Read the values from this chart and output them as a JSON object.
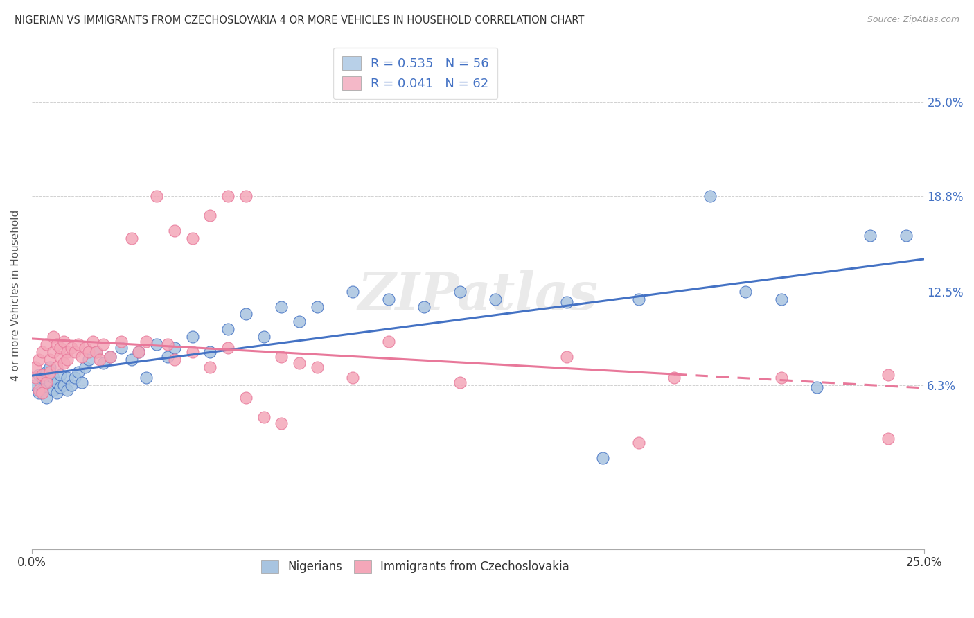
{
  "title": "NIGERIAN VS IMMIGRANTS FROM CZECHOSLOVAKIA 4 OR MORE VEHICLES IN HOUSEHOLD CORRELATION CHART",
  "source": "Source: ZipAtlas.com",
  "ylabel": "4 or more Vehicles in Household",
  "ytick_labels": [
    "25.0%",
    "18.8%",
    "12.5%",
    "6.3%"
  ],
  "ytick_values": [
    0.25,
    0.188,
    0.125,
    0.063
  ],
  "xmin": 0.0,
  "xmax": 0.25,
  "ymin": -0.045,
  "ymax": 0.29,
  "blue_R": 0.535,
  "blue_N": 56,
  "pink_R": 0.041,
  "pink_N": 62,
  "blue_color": "#a8c4e0",
  "blue_line_color": "#4472c4",
  "pink_color": "#f4a7b9",
  "pink_line_color": "#e8789a",
  "legend_blue_face": "#b8d0e8",
  "legend_pink_face": "#f4b8c8",
  "watermark": "ZIPatlas",
  "blue_scatter_x": [
    0.001,
    0.002,
    0.002,
    0.003,
    0.003,
    0.004,
    0.004,
    0.005,
    0.005,
    0.006,
    0.006,
    0.007,
    0.007,
    0.008,
    0.008,
    0.009,
    0.01,
    0.01,
    0.011,
    0.012,
    0.013,
    0.014,
    0.015,
    0.016,
    0.018,
    0.02,
    0.022,
    0.025,
    0.028,
    0.03,
    0.032,
    0.035,
    0.038,
    0.04,
    0.045,
    0.05,
    0.055,
    0.06,
    0.065,
    0.07,
    0.075,
    0.08,
    0.09,
    0.1,
    0.11,
    0.12,
    0.13,
    0.15,
    0.16,
    0.17,
    0.19,
    0.2,
    0.21,
    0.22,
    0.235,
    0.245
  ],
  "blue_scatter_y": [
    0.063,
    0.058,
    0.07,
    0.06,
    0.068,
    0.055,
    0.072,
    0.065,
    0.075,
    0.06,
    0.068,
    0.058,
    0.065,
    0.062,
    0.07,
    0.063,
    0.06,
    0.068,
    0.063,
    0.068,
    0.072,
    0.065,
    0.075,
    0.08,
    0.085,
    0.078,
    0.082,
    0.088,
    0.08,
    0.085,
    0.068,
    0.09,
    0.082,
    0.088,
    0.095,
    0.085,
    0.1,
    0.11,
    0.095,
    0.115,
    0.105,
    0.115,
    0.125,
    0.12,
    0.115,
    0.125,
    0.12,
    0.118,
    0.015,
    0.12,
    0.188,
    0.125,
    0.12,
    0.062,
    0.162,
    0.162
  ],
  "pink_scatter_x": [
    0.001,
    0.001,
    0.002,
    0.002,
    0.003,
    0.003,
    0.003,
    0.004,
    0.004,
    0.005,
    0.005,
    0.006,
    0.006,
    0.007,
    0.007,
    0.008,
    0.008,
    0.009,
    0.009,
    0.01,
    0.01,
    0.011,
    0.012,
    0.013,
    0.014,
    0.015,
    0.016,
    0.017,
    0.018,
    0.019,
    0.02,
    0.022,
    0.025,
    0.028,
    0.03,
    0.032,
    0.035,
    0.038,
    0.04,
    0.045,
    0.05,
    0.055,
    0.06,
    0.065,
    0.07,
    0.075,
    0.08,
    0.09,
    0.1,
    0.12,
    0.15,
    0.18,
    0.21,
    0.24,
    0.04,
    0.045,
    0.05,
    0.055,
    0.06,
    0.07,
    0.17,
    0.24
  ],
  "pink_scatter_y": [
    0.068,
    0.075,
    0.06,
    0.08,
    0.058,
    0.07,
    0.085,
    0.065,
    0.09,
    0.072,
    0.08,
    0.085,
    0.095,
    0.075,
    0.09,
    0.082,
    0.088,
    0.078,
    0.092,
    0.085,
    0.08,
    0.088,
    0.085,
    0.09,
    0.082,
    0.088,
    0.085,
    0.092,
    0.085,
    0.08,
    0.09,
    0.082,
    0.092,
    0.16,
    0.085,
    0.092,
    0.188,
    0.09,
    0.08,
    0.085,
    0.075,
    0.088,
    0.055,
    0.042,
    0.082,
    0.078,
    0.075,
    0.068,
    0.092,
    0.065,
    0.082,
    0.068,
    0.068,
    0.07,
    0.165,
    0.16,
    0.175,
    0.188,
    0.188,
    0.038,
    0.025,
    0.028
  ]
}
